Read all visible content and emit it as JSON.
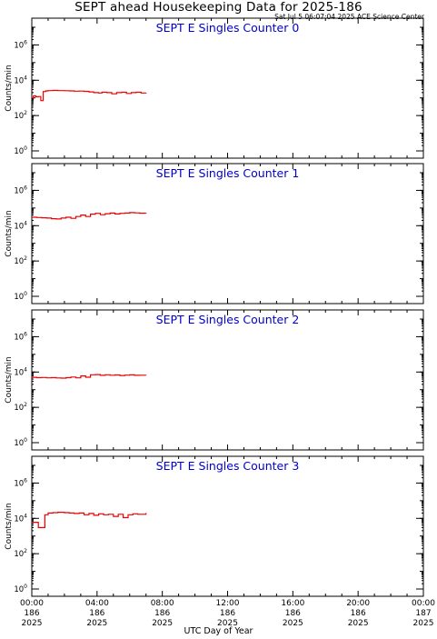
{
  "title": "SEPT ahead Housekeeping Data for 2025-186",
  "subtitle": "Sat Jul  5 06:07:04 2025 ACE Science Center",
  "xlabel": "UTC Day of Year",
  "ylabel": "Counts/min",
  "colors": {
    "series": "#ee0000",
    "panel_title": "#0000cc",
    "axis": "#000000"
  },
  "chart_data": {
    "type": "line",
    "x_unit": "hours UTC (day 186)",
    "xlim": [
      0,
      24
    ],
    "ylim": [
      1,
      10000000
    ],
    "yscale": "log",
    "grid": false,
    "y_ticks": [
      {
        "value": 1,
        "base": "10",
        "exp": "0"
      },
      {
        "value": 100,
        "base": "10",
        "exp": "2"
      },
      {
        "value": 10000,
        "base": "10",
        "exp": "4"
      },
      {
        "value": 1000000,
        "base": "10",
        "exp": "6"
      }
    ],
    "x_ticks": [
      {
        "value": 0,
        "time": "00:00",
        "doy": "186",
        "year": "2025"
      },
      {
        "value": 4,
        "time": "04:00",
        "doy": "186",
        "year": "2025"
      },
      {
        "value": 8,
        "time": "08:00",
        "doy": "186",
        "year": "2025"
      },
      {
        "value": 12,
        "time": "12:00",
        "doy": "186",
        "year": "2025"
      },
      {
        "value": 16,
        "time": "16:00",
        "doy": "186",
        "year": "2025"
      },
      {
        "value": 20,
        "time": "20:00",
        "doy": "186",
        "year": "2025"
      },
      {
        "value": 24,
        "time": "00:00",
        "doy": "187",
        "year": "2025"
      }
    ],
    "panels": [
      {
        "title": "SEPT E Singles Counter 0",
        "x": [
          0,
          0.1,
          0.25,
          0.4,
          0.55,
          0.7,
          0.85,
          1.0,
          1.3,
          1.6,
          2.0,
          2.3,
          2.6,
          2.9,
          3.2,
          3.5,
          3.8,
          4.1,
          4.3,
          4.6,
          4.9,
          5.2,
          5.5,
          5.8,
          6.1,
          6.4,
          6.7,
          7.0
        ],
        "y": [
          1000,
          1300,
          1150,
          1200,
          700,
          2300,
          2500,
          2600,
          2650,
          2600,
          2550,
          2500,
          2400,
          2450,
          2350,
          2200,
          2000,
          1900,
          2100,
          2000,
          1700,
          2000,
          2100,
          1800,
          2000,
          2100,
          1900,
          2000
        ]
      },
      {
        "title": "SEPT E Singles Counter 1",
        "x": [
          0,
          0.3,
          0.6,
          0.9,
          1.2,
          1.5,
          1.8,
          2.1,
          2.4,
          2.7,
          3.0,
          3.3,
          3.6,
          3.9,
          4.2,
          4.5,
          4.8,
          5.1,
          5.4,
          5.7,
          6.0,
          6.3,
          6.6,
          7.0
        ],
        "y": [
          30000,
          29000,
          28000,
          27000,
          25000,
          24000,
          27000,
          30000,
          26000,
          33000,
          40000,
          33000,
          45000,
          50000,
          42000,
          48000,
          52000,
          46000,
          50000,
          52000,
          55000,
          53000,
          51000,
          52000
        ]
      },
      {
        "title": "SEPT E Singles Counter 2",
        "x": [
          0,
          0.3,
          0.6,
          0.9,
          1.2,
          1.5,
          1.8,
          2.1,
          2.4,
          2.7,
          3.0,
          3.3,
          3.6,
          3.9,
          4.2,
          4.5,
          4.8,
          5.1,
          5.4,
          5.7,
          6.0,
          6.3,
          6.6,
          7.0
        ],
        "y": [
          5000,
          4800,
          4900,
          4700,
          4800,
          4600,
          4500,
          4800,
          5200,
          4700,
          6000,
          5100,
          7000,
          7200,
          6500,
          7000,
          6600,
          6800,
          6400,
          6700,
          6900,
          6500,
          6600,
          6500
        ]
      },
      {
        "title": "SEPT E Singles Counter 3",
        "x": [
          0,
          0.4,
          0.6,
          0.8,
          1.0,
          1.3,
          1.6,
          2.0,
          2.3,
          2.6,
          2.9,
          3.2,
          3.5,
          3.8,
          4.1,
          4.4,
          4.7,
          5.0,
          5.3,
          5.6,
          5.9,
          6.2,
          6.5,
          7.0
        ],
        "y": [
          6000,
          3000,
          3000,
          16000,
          20000,
          21000,
          22000,
          21000,
          20000,
          19000,
          20000,
          16000,
          19000,
          15000,
          18000,
          16000,
          17000,
          13000,
          17000,
          11000,
          16000,
          18000,
          17000,
          20000
        ]
      }
    ]
  }
}
